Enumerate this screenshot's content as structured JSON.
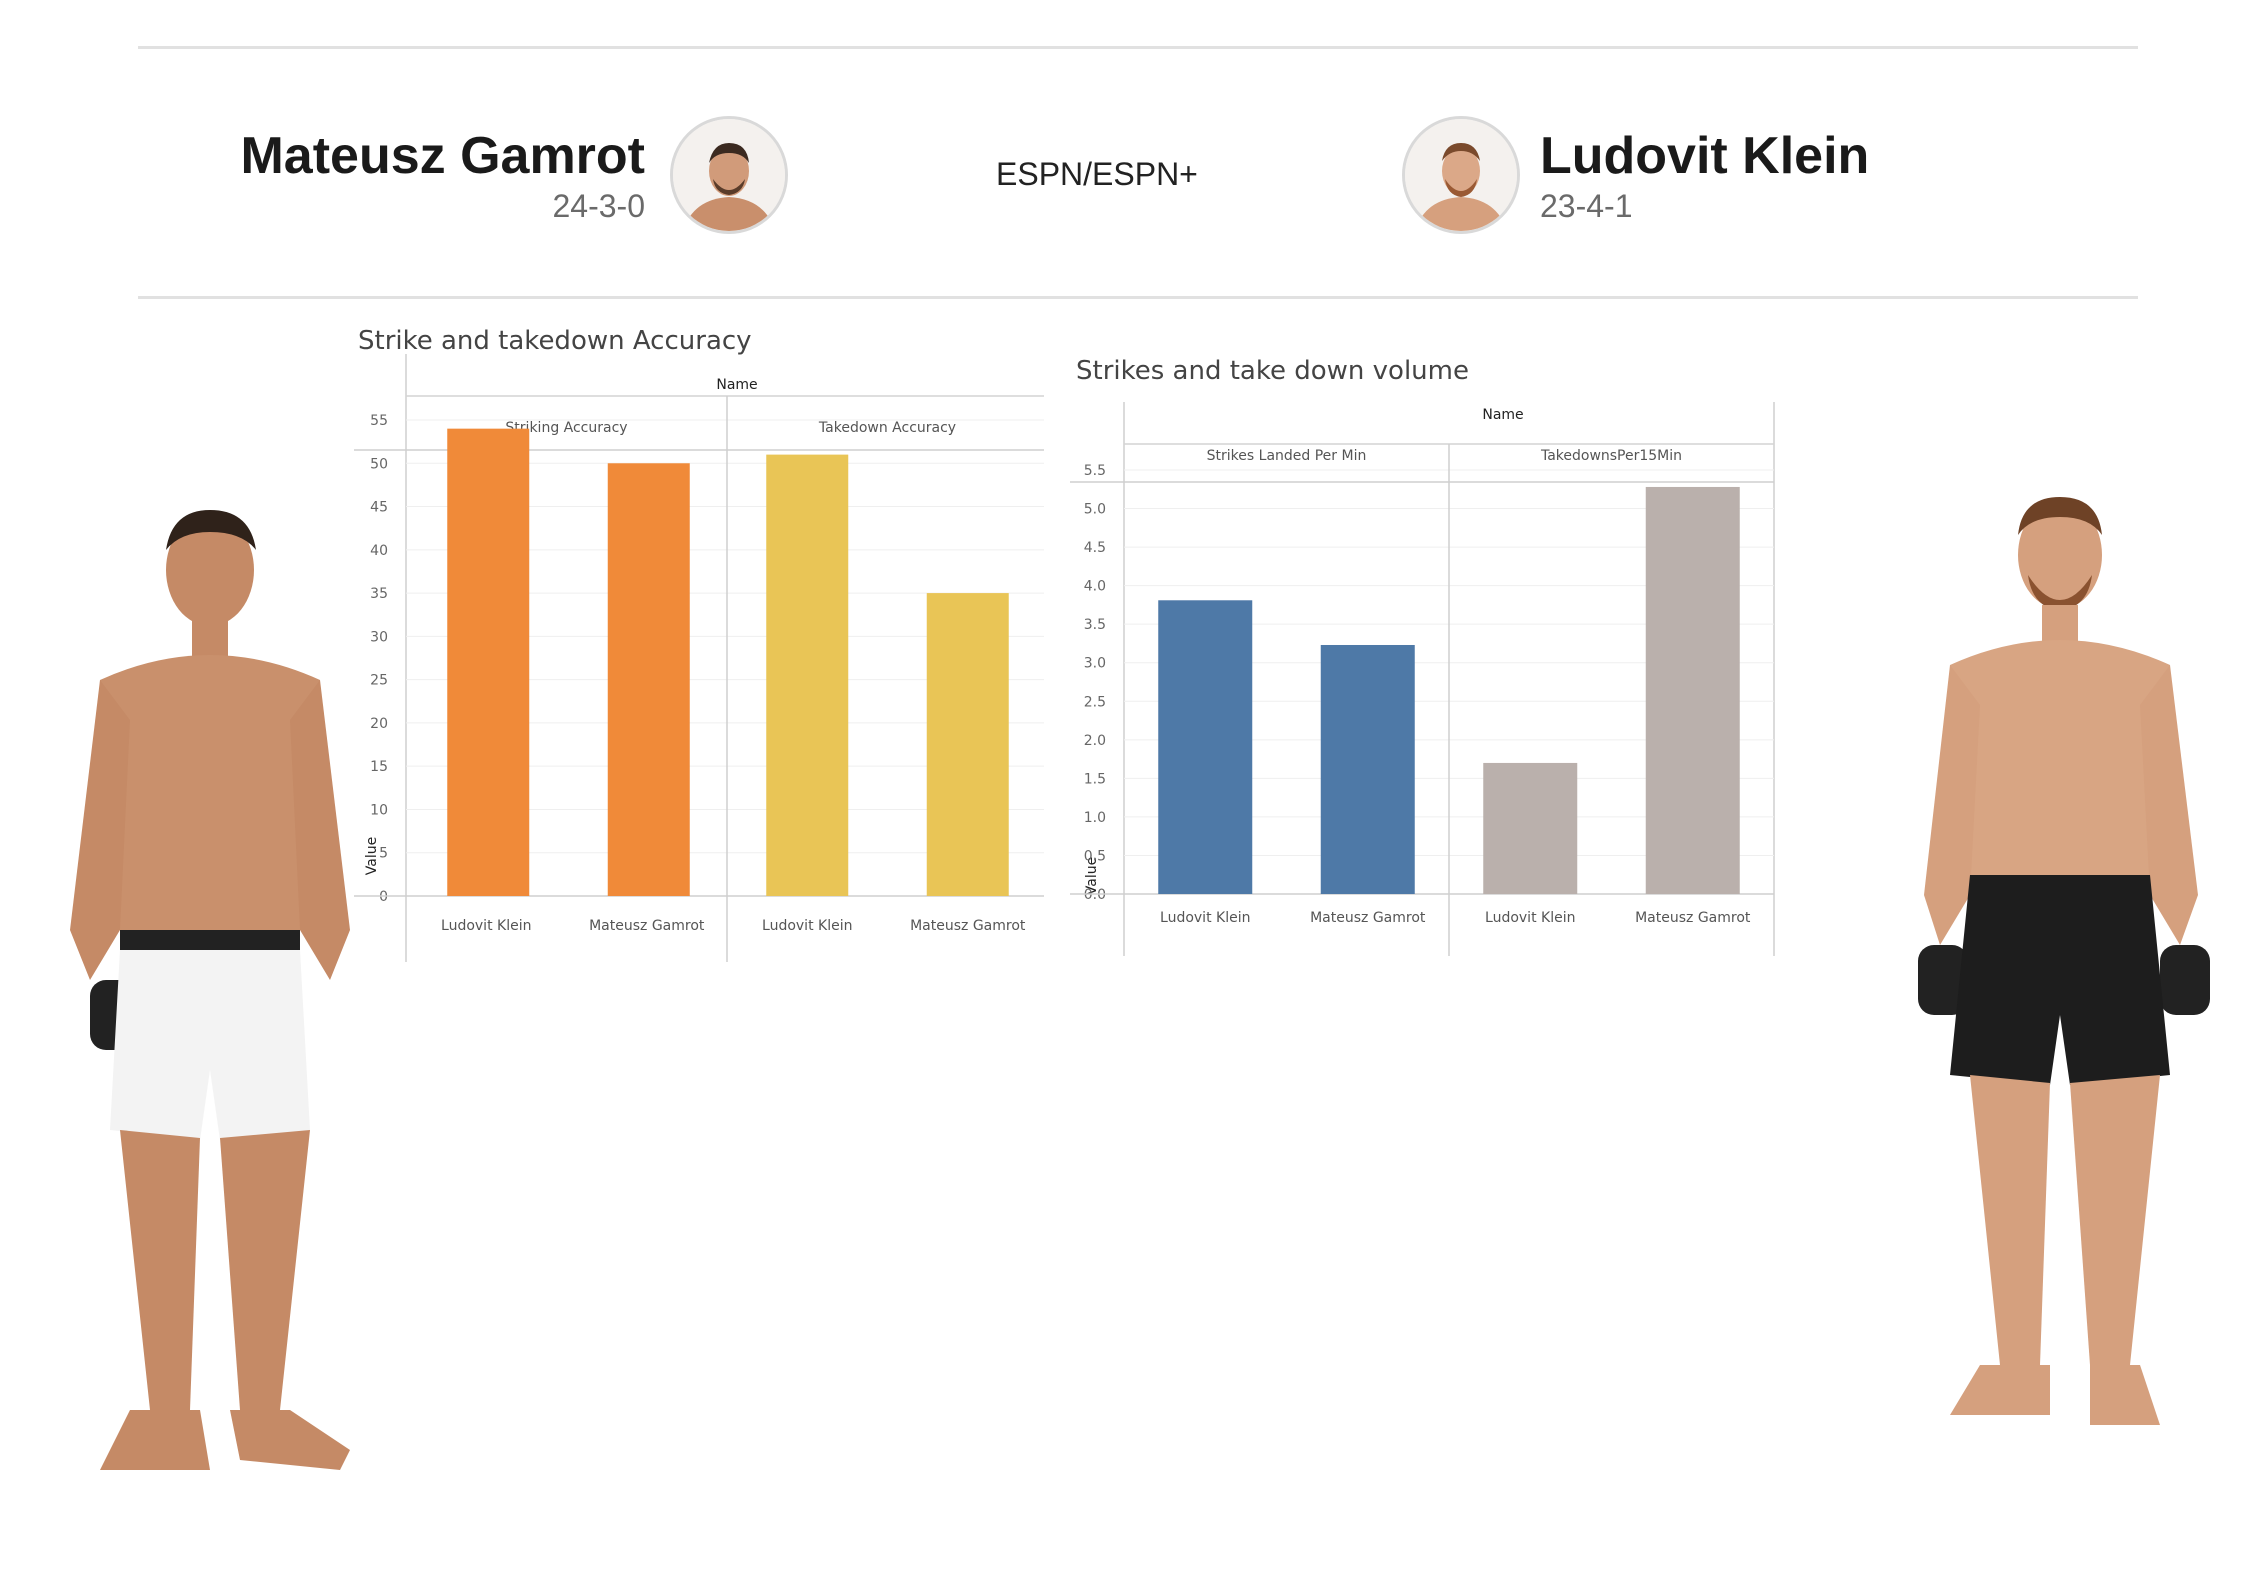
{
  "header": {
    "left_fighter": {
      "name": "Mateusz Gamrot",
      "record": "24-3-0"
    },
    "broadcast": "ESPN/ESPN+",
    "right_fighter": {
      "name": "Ludovit Klein",
      "record": "23-4-1"
    }
  },
  "chart_data": [
    {
      "type": "bar",
      "title": "Strike and takedown Accuracy",
      "column_header": "Name",
      "ylabel": "Value",
      "ylim": [
        0,
        55
      ],
      "yticks": [
        0,
        5,
        10,
        15,
        20,
        25,
        30,
        35,
        40,
        45,
        50,
        55
      ],
      "ytick_labels": [
        "0",
        "5",
        "10",
        "15",
        "20",
        "25",
        "30",
        "35",
        "40",
        "45",
        "50",
        "55"
      ],
      "panels": [
        {
          "label": "Striking Accuracy",
          "color": "#F08A39",
          "categories": [
            "Ludovit Klein",
            "Mateusz Gamrot"
          ],
          "values": [
            54,
            50
          ]
        },
        {
          "label": "Takedown Accuracy",
          "color": "#E9C556",
          "categories": [
            "Ludovit Klein",
            "Mateusz Gamrot"
          ],
          "values": [
            51,
            35
          ]
        }
      ]
    },
    {
      "type": "bar",
      "title": "Strikes and take down volume",
      "column_header": "Name",
      "ylabel": "Value",
      "ylim": [
        0,
        5.5
      ],
      "yticks": [
        0,
        0.5,
        1,
        1.5,
        2,
        2.5,
        3,
        3.5,
        4,
        4.5,
        5,
        5.5
      ],
      "ytick_labels": [
        "0.0",
        "0.5",
        "1.0",
        "1.5",
        "2.0",
        "2.5",
        "3.0",
        "3.5",
        "4.0",
        "4.5",
        "5.0",
        "5.5"
      ],
      "panels": [
        {
          "label": "Strikes Landed Per Min",
          "color": "#4E79A7",
          "categories": [
            "Ludovit Klein",
            "Mateusz Gamrot"
          ],
          "values": [
            3.81,
            3.23
          ]
        },
        {
          "label": "TakedownsPer15Min",
          "color": "#BAB0AC",
          "categories": [
            "Ludovit Klein",
            "Mateusz Gamrot"
          ],
          "values": [
            1.7,
            5.28
          ]
        }
      ]
    }
  ]
}
